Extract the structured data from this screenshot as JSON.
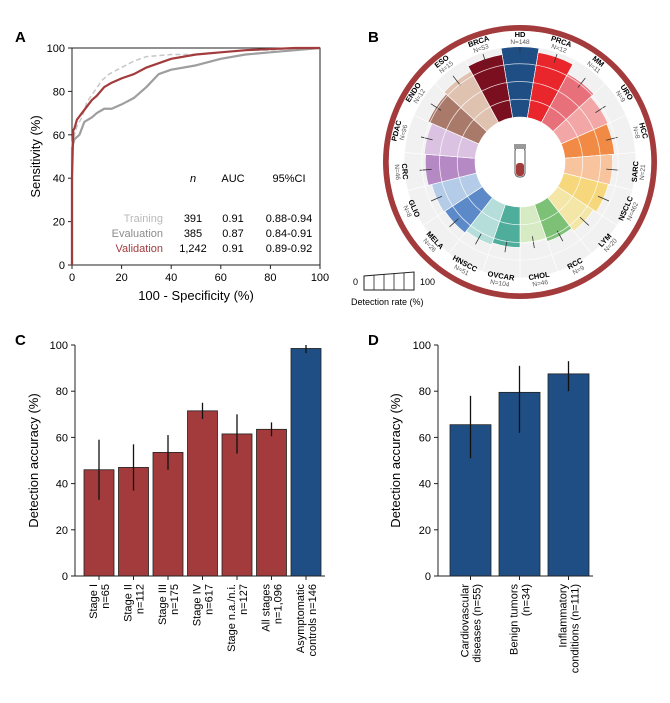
{
  "colors": {
    "red": "#a33a3c",
    "blue": "#1f4e85",
    "training": "#c7c7c7",
    "evaluation": "#9e9e9e",
    "validation": "#a33a3c",
    "ring": "#a33a3c"
  },
  "chart_data": [
    {
      "panel": "A",
      "type": "line",
      "xlabel": "100 - Specificity (%)",
      "ylabel": "Sensitivity (%)",
      "xlim": [
        0,
        100
      ],
      "ylim": [
        0,
        100
      ],
      "xticks": [
        "0",
        "20",
        "40",
        "60",
        "80",
        "100"
      ],
      "yticks": [
        "0",
        "20",
        "40",
        "60",
        "80",
        "100"
      ],
      "table_headers": [
        "n",
        "AUC",
        "95%CI"
      ],
      "series": [
        {
          "name": "Training",
          "n": "391",
          "auc": "0.91",
          "ci": "0.88-0.94",
          "x": [
            0,
            0,
            1,
            2,
            4,
            6,
            9,
            12,
            15,
            20,
            25,
            30,
            40,
            50,
            60,
            70,
            80,
            90,
            100
          ],
          "y": [
            0,
            56,
            60,
            64,
            68,
            75,
            80,
            85,
            88,
            91,
            94,
            96,
            97,
            97,
            98,
            99,
            99,
            100,
            100
          ]
        },
        {
          "name": "Evaluation",
          "n": "385",
          "auc": "0.87",
          "ci": "0.84-0.91",
          "x": [
            0,
            0,
            1,
            3,
            5,
            8,
            10,
            13,
            16,
            20,
            25,
            30,
            35,
            40,
            50,
            60,
            70,
            80,
            90,
            100
          ],
          "y": [
            0,
            54,
            58,
            60,
            66,
            68,
            70,
            72,
            72,
            74,
            77,
            82,
            88,
            90,
            92,
            95,
            97,
            98,
            99,
            100
          ]
        },
        {
          "name": "Validation",
          "n": "1,242",
          "auc": "0.91",
          "ci": "0.89-0.92",
          "x": [
            0,
            0,
            0.5,
            1,
            2,
            4,
            6,
            8,
            10,
            13,
            16,
            20,
            25,
            30,
            40,
            50,
            60,
            70,
            80,
            90,
            100
          ],
          "y": [
            0,
            40,
            62,
            63,
            67,
            70,
            73,
            76,
            78,
            82,
            84,
            86,
            88,
            91,
            95,
            97,
            98,
            99,
            99.5,
            100,
            100
          ]
        }
      ]
    },
    {
      "panel": "B",
      "type": "radial-bar",
      "legend_label": "Detection rate (%)",
      "legend_min": "0",
      "legend_max": "100",
      "categories": [
        {
          "name": "HD",
          "n": "N=148",
          "value": 99,
          "color": "#1f4e85"
        },
        {
          "name": "PRCA",
          "n": "N=12",
          "value": 93,
          "color": "#e8262b"
        },
        {
          "name": "MM",
          "n": "N=11",
          "value": 78,
          "color": "#e8707a"
        },
        {
          "name": "URO",
          "n": "N=9",
          "value": 72,
          "color": "#f2a6a6"
        },
        {
          "name": "HCC",
          "n": "N=8",
          "value": 70,
          "color": "#f08a44"
        },
        {
          "name": "SARC",
          "n": "N=21",
          "value": 67,
          "color": "#f8c49d"
        },
        {
          "name": "NSCLC",
          "n": "N=462",
          "value": 65,
          "color": "#f6d77b"
        },
        {
          "name": "LYM",
          "n": "N=20",
          "value": 60,
          "color": "#f3e6a6"
        },
        {
          "name": "RCC",
          "n": "N=9",
          "value": 55,
          "color": "#7dc177"
        },
        {
          "name": "CHOL",
          "n": "N=46",
          "value": 51,
          "color": "#d6eac4"
        },
        {
          "name": "OVCAR",
          "n": "N=104",
          "value": 57,
          "color": "#4fad9c"
        },
        {
          "name": "HNSCC",
          "n": "N=51",
          "value": 60,
          "color": "#b5dedb"
        },
        {
          "name": "MELA",
          "n": "N=26",
          "value": 63,
          "color": "#5c8ac8"
        },
        {
          "name": "GLIO",
          "n": "N=8",
          "value": 65,
          "color": "#b4cce8"
        },
        {
          "name": "CRC",
          "n": "N=46",
          "value": 70,
          "color": "#b58ac4"
        },
        {
          "name": "PDAC",
          "n": "N=96",
          "value": 72,
          "color": "#dcc2e2"
        },
        {
          "name": "ENDO",
          "n": "N=12",
          "value": 78,
          "color": "#a9796a"
        },
        {
          "name": "ESO",
          "n": "N=15",
          "value": 82,
          "color": "#e0c2b1"
        },
        {
          "name": "BRCA",
          "n": "N=53",
          "value": 90,
          "color": "#7a0f1f"
        }
      ]
    },
    {
      "panel": "C",
      "type": "bar",
      "ylabel": "Detection accuracy (%)",
      "ylim": [
        0,
        100
      ],
      "yticks": [
        "0",
        "20",
        "40",
        "60",
        "80",
        "100"
      ],
      "categories": [
        {
          "l1": "Stage I",
          "l2": "n=65"
        },
        {
          "l1": "Stage II",
          "l2": "n=112"
        },
        {
          "l1": "Stage III",
          "l2": "n=175"
        },
        {
          "l1": "Stage IV",
          "l2": "n=617"
        },
        {
          "l1": "Stage n.a./n.i.",
          "l2": "n=127"
        },
        {
          "l1": "All stages",
          "l2": "n=1,096"
        },
        {
          "l1": "Asymptomatic",
          "l2": "controls n=146"
        }
      ],
      "values": [
        46,
        47,
        53.5,
        71.5,
        61.5,
        63.5,
        98.5
      ],
      "err_low": [
        33,
        37,
        46,
        68,
        53,
        60.5,
        96.5
      ],
      "err_high": [
        59,
        57,
        61,
        75,
        70,
        66.5,
        100
      ],
      "bar_colors": [
        "red",
        "red",
        "red",
        "red",
        "red",
        "red",
        "blue"
      ]
    },
    {
      "panel": "D",
      "type": "bar",
      "ylabel": "Detection accuracy (%)",
      "ylim": [
        0,
        100
      ],
      "yticks": [
        "0",
        "20",
        "40",
        "60",
        "80",
        "100"
      ],
      "categories": [
        {
          "l1": "Cardiovascular",
          "l2": "diseases (n=55)"
        },
        {
          "l1": "Benign tumors",
          "l2": "(n=34)"
        },
        {
          "l1": "Inflammatory",
          "l2": "conditions (n=111)"
        }
      ],
      "values": [
        65.5,
        79.5,
        87.5
      ],
      "err_low": [
        51,
        62,
        80
      ],
      "err_high": [
        78,
        91,
        93
      ],
      "bar_colors": [
        "blue",
        "blue",
        "blue"
      ]
    }
  ]
}
